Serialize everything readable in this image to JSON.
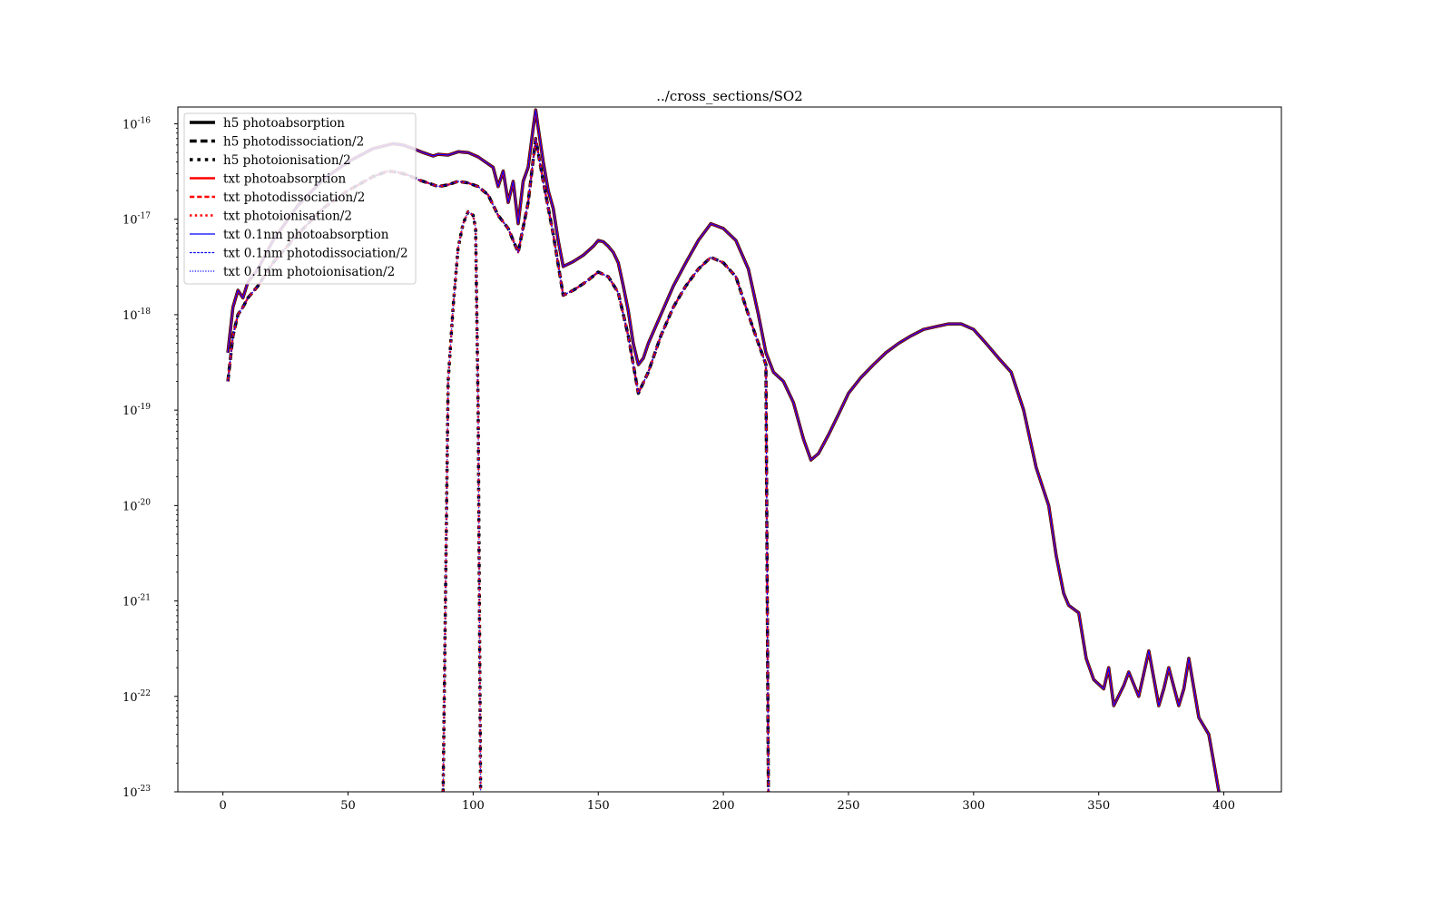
{
  "chart_data": {
    "type": "line",
    "title": "../cross_sections/SO2",
    "xlabel": "",
    "ylabel": "",
    "xlim": [
      -18,
      423
    ],
    "ylim": [
      1e-23,
      1.5e-16
    ],
    "yscale": "log",
    "grid": false,
    "legend_position": "top-left",
    "x_ticks": [
      0,
      50,
      100,
      150,
      200,
      250,
      300,
      350,
      400
    ],
    "x_tick_labels": [
      "0",
      "50",
      "100",
      "150",
      "200",
      "250",
      "300",
      "350",
      "400"
    ],
    "y_ticks": [
      1e-16,
      1e-17,
      1e-18,
      1e-19,
      1e-20,
      1e-21,
      1e-22,
      1e-23
    ],
    "y_tick_labels": [
      {
        "base": "10",
        "exp": "-16"
      },
      {
        "base": "10",
        "exp": "-17"
      },
      {
        "base": "10",
        "exp": "-18"
      },
      {
        "base": "10",
        "exp": "-19"
      },
      {
        "base": "10",
        "exp": "-20"
      },
      {
        "base": "10",
        "exp": "-21"
      },
      {
        "base": "10",
        "exp": "-22"
      },
      {
        "base": "10",
        "exp": "-23"
      }
    ],
    "colors": {
      "h5": "#000000",
      "txt": "#ff0000",
      "txt_0.1nm": "#0000ff"
    },
    "absorption_points": [
      [
        2,
        4e-19
      ],
      [
        4,
        1.2e-18
      ],
      [
        6,
        1.8e-18
      ],
      [
        8,
        1.5e-18
      ],
      [
        10,
        2.2e-18
      ],
      [
        14,
        3e-18
      ],
      [
        20,
        6e-18
      ],
      [
        30,
        1.4e-17
      ],
      [
        40,
        2.6e-17
      ],
      [
        50,
        4e-17
      ],
      [
        60,
        5.5e-17
      ],
      [
        68,
        6.2e-17
      ],
      [
        72,
        6e-17
      ],
      [
        76,
        5.5e-17
      ],
      [
        80,
        5e-17
      ],
      [
        84,
        4.6e-17
      ],
      [
        86,
        4.8e-17
      ],
      [
        90,
        4.7e-17
      ],
      [
        94,
        5.1e-17
      ],
      [
        98,
        5e-17
      ],
      [
        102,
        4.5e-17
      ],
      [
        106,
        3.8e-17
      ],
      [
        108,
        3.5e-17
      ],
      [
        110,
        2.2e-17
      ],
      [
        112,
        3.2e-17
      ],
      [
        114,
        1.5e-17
      ],
      [
        116,
        2.5e-17
      ],
      [
        118,
        9e-18
      ],
      [
        120,
        2.5e-17
      ],
      [
        122,
        3.5e-17
      ],
      [
        124,
        9e-17
      ],
      [
        125,
        1.4e-16
      ],
      [
        126,
        9e-17
      ],
      [
        128,
        4e-17
      ],
      [
        130,
        2e-17
      ],
      [
        132,
        1.3e-17
      ],
      [
        134,
        6e-18
      ],
      [
        136,
        3.2e-18
      ],
      [
        140,
        3.6e-18
      ],
      [
        144,
        4.2e-18
      ],
      [
        148,
        5.2e-18
      ],
      [
        150,
        6e-18
      ],
      [
        152,
        5.8e-18
      ],
      [
        154,
        5.2e-18
      ],
      [
        156,
        4.5e-18
      ],
      [
        158,
        3.5e-18
      ],
      [
        160,
        2e-18
      ],
      [
        162,
        1.1e-18
      ],
      [
        164,
        5e-19
      ],
      [
        166,
        3e-19
      ],
      [
        168,
        3.5e-19
      ],
      [
        170,
        5e-19
      ],
      [
        175,
        1e-18
      ],
      [
        180,
        2e-18
      ],
      [
        185,
        3.5e-18
      ],
      [
        190,
        6e-18
      ],
      [
        195,
        9e-18
      ],
      [
        200,
        8e-18
      ],
      [
        205,
        6e-18
      ],
      [
        210,
        3e-18
      ],
      [
        214,
        1e-18
      ],
      [
        217,
        4e-19
      ],
      [
        220,
        2.5e-19
      ],
      [
        224,
        2e-19
      ],
      [
        228,
        1.2e-19
      ],
      [
        232,
        5e-20
      ],
      [
        235,
        3e-20
      ],
      [
        238,
        3.5e-20
      ],
      [
        242,
        5.5e-20
      ],
      [
        246,
        9e-20
      ],
      [
        250,
        1.5e-19
      ],
      [
        255,
        2.2e-19
      ],
      [
        260,
        3e-19
      ],
      [
        265,
        4e-19
      ],
      [
        270,
        5e-19
      ],
      [
        275,
        6e-19
      ],
      [
        280,
        7e-19
      ],
      [
        285,
        7.5e-19
      ],
      [
        290,
        8e-19
      ],
      [
        295,
        8e-19
      ],
      [
        300,
        7e-19
      ],
      [
        305,
        5e-19
      ],
      [
        310,
        3.5e-19
      ],
      [
        315,
        2.5e-19
      ],
      [
        320,
        1e-19
      ],
      [
        325,
        2.5e-20
      ],
      [
        330,
        1e-20
      ],
      [
        333,
        3e-21
      ],
      [
        336,
        1.2e-21
      ],
      [
        338,
        9e-22
      ],
      [
        342,
        7.5e-22
      ],
      [
        345,
        2.5e-22
      ],
      [
        348,
        1.5e-22
      ],
      [
        352,
        1.2e-22
      ],
      [
        354,
        2e-22
      ],
      [
        356,
        8e-23
      ],
      [
        360,
        1.3e-22
      ],
      [
        362,
        1.8e-22
      ],
      [
        366,
        1e-22
      ],
      [
        370,
        3e-22
      ],
      [
        374,
        8e-23
      ],
      [
        376,
        1.2e-22
      ],
      [
        378,
        2e-22
      ],
      [
        382,
        8e-23
      ],
      [
        384,
        1.2e-22
      ],
      [
        386,
        2.5e-22
      ],
      [
        390,
        6e-23
      ],
      [
        394,
        4e-23
      ],
      [
        396,
        2e-23
      ],
      [
        398,
        1e-23
      ]
    ],
    "dissociation_points": [
      [
        2,
        2e-19
      ],
      [
        4,
        6e-19
      ],
      [
        6,
        1e-18
      ],
      [
        8,
        1.2e-18
      ],
      [
        10,
        1.5e-18
      ],
      [
        14,
        2e-18
      ],
      [
        20,
        3.5e-18
      ],
      [
        30,
        7e-18
      ],
      [
        40,
        1.3e-17
      ],
      [
        50,
        2e-17
      ],
      [
        60,
        2.8e-17
      ],
      [
        66,
        3.2e-17
      ],
      [
        70,
        3.1e-17
      ],
      [
        74,
        2.9e-17
      ],
      [
        78,
        2.6e-17
      ],
      [
        82,
        2.4e-17
      ],
      [
        86,
        2.2e-17
      ],
      [
        90,
        2.3e-17
      ],
      [
        94,
        2.5e-17
      ],
      [
        98,
        2.4e-17
      ],
      [
        102,
        2.2e-17
      ],
      [
        106,
        1.8e-17
      ],
      [
        110,
        1.1e-17
      ],
      [
        114,
        8e-18
      ],
      [
        118,
        4.5e-18
      ],
      [
        122,
        1.5e-17
      ],
      [
        125,
        7e-17
      ],
      [
        128,
        2.5e-17
      ],
      [
        132,
        7e-18
      ],
      [
        136,
        1.6e-18
      ],
      [
        140,
        1.8e-18
      ],
      [
        145,
        2.2e-18
      ],
      [
        150,
        2.8e-18
      ],
      [
        154,
        2.5e-18
      ],
      [
        158,
        1.7e-18
      ],
      [
        162,
        6e-19
      ],
      [
        166,
        1.5e-19
      ],
      [
        170,
        2.5e-19
      ],
      [
        175,
        6e-19
      ],
      [
        180,
        1.2e-18
      ],
      [
        185,
        2e-18
      ],
      [
        190,
        3e-18
      ],
      [
        195,
        4e-18
      ],
      [
        200,
        3.5e-18
      ],
      [
        205,
        2.5e-18
      ],
      [
        210,
        1e-18
      ],
      [
        214,
        5e-19
      ],
      [
        217,
        3e-19
      ],
      [
        218,
        1e-23
      ]
    ],
    "ionisation_points": [
      [
        88,
        1e-23
      ],
      [
        90,
        2e-19
      ],
      [
        92,
        1.2e-18
      ],
      [
        94,
        5e-18
      ],
      [
        96,
        9e-18
      ],
      [
        98,
        1.2e-17
      ],
      [
        100,
        1.1e-17
      ],
      [
        101,
        8e-18
      ],
      [
        102,
        1e-19
      ],
      [
        103,
        1e-23
      ]
    ],
    "legend": [
      {
        "label": "h5 photoabsorption",
        "color": "#000000",
        "style": "solid",
        "width": 3.5
      },
      {
        "label": "h5 photodissociation/2",
        "color": "#000000",
        "style": "dashed",
        "width": 3.5
      },
      {
        "label": "h5 photoionisation/2",
        "color": "#000000",
        "style": "dotted",
        "width": 3.5
      },
      {
        "label": "txt photoabsorption",
        "color": "#ff0000",
        "style": "solid",
        "width": 2.4
      },
      {
        "label": "txt photodissociation/2",
        "color": "#ff0000",
        "style": "dashed",
        "width": 2.4
      },
      {
        "label": "txt photoionisation/2",
        "color": "#ff0000",
        "style": "dotted",
        "width": 2.4
      },
      {
        "label": "txt 0.1nm photoabsorption",
        "color": "#0000ff",
        "style": "solid",
        "width": 1.2
      },
      {
        "label": "txt 0.1nm photodissociation/2",
        "color": "#0000ff",
        "style": "dashed",
        "width": 1.2
      },
      {
        "label": "txt 0.1nm photoionisation/2",
        "color": "#0000ff",
        "style": "dotted",
        "width": 1.2
      }
    ]
  }
}
